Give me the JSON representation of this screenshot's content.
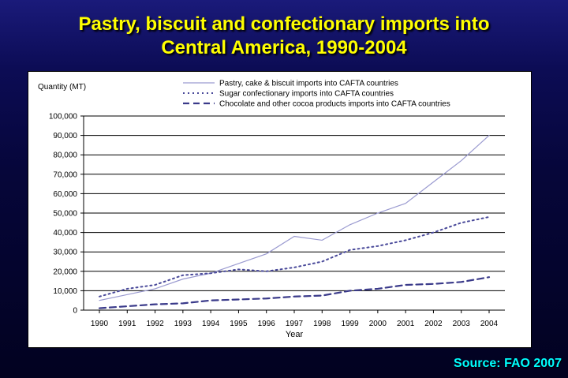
{
  "slide": {
    "title_line1": "Pastry, biscuit and confectionary imports into",
    "title_line2": "Central America, 1990-2004",
    "source": "Source: FAO 2007"
  },
  "colors": {
    "title": "#ffff00",
    "source": "#00ffff",
    "series1": "#9a9ad0",
    "series2": "#4a4a9a",
    "series3": "#3a3a8a"
  },
  "chart_data": {
    "type": "line",
    "title": "",
    "ylabel": "Quantity (MT)",
    "xlabel": "Year",
    "ylim": [
      0,
      100000
    ],
    "yticks": [
      "0",
      "10,000",
      "20,000",
      "30,000",
      "40,000",
      "50,000",
      "60,000",
      "70,000",
      "80,000",
      "90,000",
      "100,000"
    ],
    "ytick_values": [
      0,
      10000,
      20000,
      30000,
      40000,
      50000,
      60000,
      70000,
      80000,
      90000,
      100000
    ],
    "grid": true,
    "legend_position": "top",
    "x": [
      "1990",
      "1991",
      "1992",
      "1993",
      "1994",
      "1995",
      "1996",
      "1997",
      "1998",
      "1999",
      "2000",
      "2001",
      "2002",
      "2003",
      "2004"
    ],
    "series": [
      {
        "name": "Pastry, cake & biscuit imports into CAFTA countries",
        "style": "solid",
        "values": [
          5000,
          8000,
          11000,
          16000,
          19000,
          24000,
          29000,
          38000,
          36000,
          44000,
          50000,
          55000,
          66000,
          77000,
          90000
        ]
      },
      {
        "name": "Sugar confectionary imports into CAFTA countries",
        "style": "dotted",
        "values": [
          7000,
          11000,
          13000,
          18000,
          19000,
          21000,
          20000,
          22000,
          25000,
          31000,
          33000,
          36000,
          40000,
          45000,
          48000
        ]
      },
      {
        "name": "Chocolate and other cocoa products imports into CAFTA countries",
        "style": "dashed",
        "values": [
          1000,
          2000,
          3000,
          3500,
          5000,
          5500,
          6000,
          7000,
          7500,
          10000,
          11000,
          13000,
          13500,
          14500,
          17000
        ]
      }
    ]
  }
}
